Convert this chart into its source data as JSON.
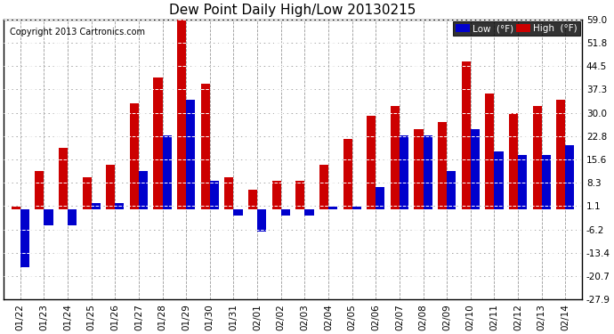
{
  "title": "Dew Point Daily High/Low 20130215",
  "copyright": "Copyright 2013 Cartronics.com",
  "dates": [
    "01/22",
    "01/23",
    "01/24",
    "01/25",
    "01/26",
    "01/27",
    "01/28",
    "01/29",
    "01/30",
    "01/31",
    "02/01",
    "02/02",
    "02/03",
    "02/04",
    "02/05",
    "02/06",
    "02/07",
    "02/08",
    "02/09",
    "02/10",
    "02/11",
    "02/12",
    "02/13",
    "02/14"
  ],
  "low": [
    -18,
    -5,
    -5,
    2,
    2,
    12,
    23,
    34,
    9,
    -2,
    -7,
    -2,
    -2,
    1,
    1,
    7,
    23,
    23,
    12,
    25,
    18,
    17,
    17,
    20
  ],
  "high": [
    1,
    12,
    19,
    10,
    14,
    33,
    41,
    59,
    39,
    10,
    6,
    9,
    9,
    14,
    22,
    29,
    32,
    25,
    27,
    46,
    36,
    30,
    32,
    34
  ],
  "ylim": [
    -27.9,
    59.0
  ],
  "yticks": [
    -27.9,
    -20.7,
    -13.4,
    -6.2,
    1.1,
    8.3,
    15.6,
    22.8,
    30.0,
    37.3,
    44.5,
    51.8,
    59.0
  ],
  "low_color": "#0000cc",
  "high_color": "#cc0000",
  "bg_color": "#ffffff",
  "grid_color": "#999999",
  "bar_width": 0.38,
  "legend_low_label": "Low  (°F)",
  "legend_high_label": "High  (°F)"
}
